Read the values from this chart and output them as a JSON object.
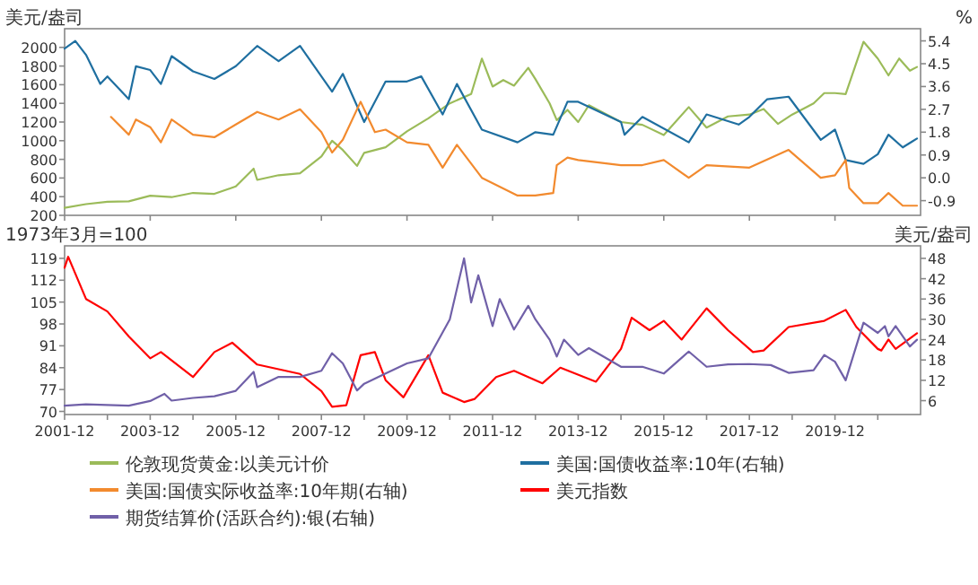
{
  "chart_data": [
    {
      "type": "line",
      "ylabel": "美元/盎司",
      "y2label": "%",
      "xlim": [
        "2001-12",
        "2021-12"
      ],
      "xticks": [
        {
          "value": "2001-12",
          "label": null
        },
        {
          "value": "2003-12",
          "label": null
        },
        {
          "value": "2005-12",
          "label": null
        },
        {
          "value": "2007-12",
          "label": null
        },
        {
          "value": "2009-12",
          "label": null
        },
        {
          "value": "2011-12",
          "label": null
        },
        {
          "value": "2013-12",
          "label": null
        },
        {
          "value": "2015-12",
          "label": null
        },
        {
          "value": "2017-12",
          "label": null
        },
        {
          "value": "2019-12",
          "label": null
        }
      ],
      "ylim": [
        200,
        2200
      ],
      "yticks": [
        200,
        400,
        600,
        800,
        1000,
        1200,
        1400,
        1600,
        1800,
        2000
      ],
      "y2lim": [
        -1.48,
        5.88
      ],
      "y2ticks": [
        -0.9,
        {
          "value": 0,
          "label": "0.0"
        },
        0.9,
        1.8,
        2.7,
        3.6,
        4.5,
        5.4
      ],
      "tick_labels": "y",
      "legend": "bottom",
      "series": [
        {
          "name": "伦敦现货黄金:以美元计价",
          "color": "#9bbb59",
          "x": [
            "2001-12",
            "2002-06",
            "2002-12",
            "2003-06",
            "2003-12",
            "2004-06",
            "2004-12",
            "2005-06",
            "2005-12",
            "2006-05",
            "2006-06",
            "2006-12",
            "2007-06",
            "2007-12",
            "2008-03",
            "2008-06",
            "2008-10",
            "2008-12",
            "2009-06",
            "2009-12",
            "2010-06",
            "2010-12",
            "2011-06",
            "2011-09",
            "2011-12",
            "2012-03",
            "2012-06",
            "2012-10",
            "2012-12",
            "2013-04",
            "2013-06",
            "2013-09",
            "2013-12",
            "2014-03",
            "2014-06",
            "2014-12",
            "2015-06",
            "2015-12",
            "2016-07",
            "2016-12",
            "2017-06",
            "2017-12",
            "2018-04",
            "2018-08",
            "2018-12",
            "2019-06",
            "2019-09",
            "2019-12",
            "2020-03",
            "2020-08",
            "2020-12",
            "2021-03",
            "2021-06",
            "2021-09",
            "2021-11"
          ],
          "values": [
            280,
            320,
            345,
            350,
            410,
            395,
            440,
            430,
            510,
            700,
            580,
            630,
            650,
            830,
            1000,
            900,
            730,
            870,
            930,
            1100,
            1240,
            1400,
            1500,
            1880,
            1580,
            1650,
            1590,
            1780,
            1660,
            1400,
            1220,
            1330,
            1200,
            1380,
            1320,
            1200,
            1170,
            1060,
            1360,
            1140,
            1260,
            1280,
            1340,
            1180,
            1280,
            1400,
            1510,
            1510,
            1500,
            2060,
            1880,
            1700,
            1880,
            1750,
            1790
          ]
        },
        {
          "name": "美国:国债收益率:10年(右轴)",
          "color": "#1f6fa0",
          "axis": "y2",
          "x": [
            "2001-12",
            "2002-03",
            "2002-06",
            "2002-10",
            "2002-12",
            "2003-06",
            "2003-08",
            "2003-12",
            "2004-03",
            "2004-06",
            "2004-12",
            "2005-06",
            "2005-12",
            "2006-06",
            "2006-12",
            "2007-06",
            "2007-12",
            "2008-03",
            "2008-06",
            "2008-12",
            "2009-06",
            "2009-12",
            "2010-04",
            "2010-10",
            "2011-02",
            "2011-09",
            "2012-07",
            "2012-12",
            "2013-05",
            "2013-09",
            "2013-12",
            "2014-12",
            "2015-01",
            "2015-06",
            "2016-07",
            "2016-12",
            "2017-09",
            "2017-12",
            "2018-05",
            "2018-11",
            "2019-08",
            "2019-12",
            "2020-03",
            "2020-08",
            "2020-12",
            "2021-03",
            "2021-07",
            "2021-11"
          ],
          "values": [
            5.1,
            5.4,
            4.85,
            3.7,
            4.0,
            3.1,
            4.4,
            4.25,
            3.7,
            4.8,
            4.2,
            3.9,
            4.4,
            5.2,
            4.6,
            5.2,
            4.0,
            3.4,
            4.1,
            2.2,
            3.8,
            3.8,
            4.0,
            2.5,
            3.7,
            1.9,
            1.4,
            1.8,
            1.7,
            3.0,
            3.0,
            2.2,
            1.7,
            2.4,
            1.4,
            2.5,
            2.1,
            2.4,
            3.1,
            3.2,
            1.5,
            1.9,
            0.7,
            0.55,
            0.93,
            1.7,
            1.2,
            1.55
          ]
        },
        {
          "name": "美国:国债实际收益率:10年期(右轴)",
          "color": "#f28a2e",
          "axis": "y2",
          "x": [
            "2003-01",
            "2003-06",
            "2003-08",
            "2003-12",
            "2004-03",
            "2004-06",
            "2004-12",
            "2005-06",
            "2005-12",
            "2006-06",
            "2006-12",
            "2007-06",
            "2007-12",
            "2008-03",
            "2008-06",
            "2008-11",
            "2009-03",
            "2009-06",
            "2009-12",
            "2010-06",
            "2010-10",
            "2011-02",
            "2011-09",
            "2012-07",
            "2012-12",
            "2013-05",
            "2013-06",
            "2013-09",
            "2013-12",
            "2014-12",
            "2015-06",
            "2015-12",
            "2016-07",
            "2016-12",
            "2017-12",
            "2018-11",
            "2019-08",
            "2019-12",
            "2020-03",
            "2020-04",
            "2020-08",
            "2020-12",
            "2021-03",
            "2021-07",
            "2021-11"
          ],
          "values": [
            2.4,
            1.7,
            2.3,
            2.0,
            1.4,
            2.3,
            1.7,
            1.6,
            2.1,
            2.6,
            2.3,
            2.7,
            1.8,
            1.0,
            1.5,
            3.0,
            1.8,
            1.9,
            1.4,
            1.3,
            0.4,
            1.3,
            0.0,
            -0.7,
            -0.7,
            -0.6,
            0.5,
            0.8,
            0.7,
            0.5,
            0.5,
            0.7,
            0.0,
            0.5,
            0.4,
            1.1,
            0.0,
            0.1,
            0.7,
            -0.4,
            -1.0,
            -1.0,
            -0.6,
            -1.1,
            -1.1
          ]
        }
      ]
    },
    {
      "type": "line",
      "ylabel": "1973年3月=100",
      "y2label": "美元/盎司",
      "xlim": [
        "2001-12",
        "2021-12"
      ],
      "xticks": [
        "2001-12",
        {
          "value": "2002-12",
          "label": null
        },
        "2003-12",
        {
          "value": "2004-12",
          "label": null
        },
        "2005-12",
        {
          "value": "2006-12",
          "label": null
        },
        "2007-12",
        {
          "value": "2008-12",
          "label": null
        },
        "2009-12",
        {
          "value": "2010-12",
          "label": null
        },
        "2011-12",
        {
          "value": "2012-12",
          "label": null
        },
        "2013-12",
        {
          "value": "2014-12",
          "label": null
        },
        "2015-12",
        {
          "value": "2016-12",
          "label": null
        },
        "2017-12",
        {
          "value": "2018-12",
          "label": null
        },
        "2019-12",
        {
          "value": "2020-12",
          "label": null
        }
      ],
      "ylim": [
        69,
        123
      ],
      "yticks": [
        70,
        77,
        84,
        91,
        98,
        105,
        112,
        119
      ],
      "y2lim": [
        1.9,
        51.7
      ],
      "y2ticks": [
        6,
        12,
        18,
        24,
        30,
        36,
        42,
        48
      ],
      "legend": "bottom",
      "series": [
        {
          "name": "美元指数",
          "color": "#ff0000",
          "x": [
            "2001-12",
            "2002-01",
            "2002-06",
            "2002-12",
            "2003-06",
            "2003-12",
            "2004-03",
            "2004-12",
            "2005-06",
            "2005-11",
            "2006-06",
            "2006-12",
            "2007-06",
            "2007-12",
            "2008-03",
            "2008-07",
            "2008-11",
            "2009-03",
            "2009-06",
            "2009-11",
            "2010-06",
            "2010-10",
            "2011-04",
            "2011-07",
            "2012-01",
            "2012-06",
            "2013-02",
            "2013-07",
            "2014-05",
            "2014-12",
            "2015-03",
            "2015-08",
            "2015-12",
            "2016-05",
            "2016-12",
            "2017-06",
            "2018-01",
            "2018-04",
            "2018-11",
            "2019-09",
            "2020-03",
            "2020-06",
            "2020-12",
            "2021-01",
            "2021-03",
            "2021-05",
            "2021-11"
          ],
          "values": [
            116,
            119.5,
            106,
            102,
            94,
            87,
            89,
            81,
            89,
            92,
            85,
            83.5,
            82,
            76.5,
            71.5,
            72,
            88,
            89,
            80,
            74.5,
            88,
            76,
            73,
            74,
            81,
            83,
            79,
            84,
            79.5,
            90,
            100,
            96,
            99,
            93,
            103,
            96,
            89,
            89.5,
            97,
            99,
            102.5,
            97,
            90,
            89.5,
            93,
            90,
            95
          ]
        },
        {
          "name": "期货结算价(活跃合约):银(右轴)",
          "color": "#7060a8",
          "axis": "y2",
          "x": [
            "2001-12",
            "2002-06",
            "2003-06",
            "2003-12",
            "2004-04",
            "2004-06",
            "2004-12",
            "2005-06",
            "2005-12",
            "2006-05",
            "2006-06",
            "2006-12",
            "2007-06",
            "2007-12",
            "2008-03",
            "2008-06",
            "2008-10",
            "2008-12",
            "2009-06",
            "2009-12",
            "2010-06",
            "2010-12",
            "2011-04",
            "2011-06",
            "2011-08",
            "2011-12",
            "2012-02",
            "2012-06",
            "2012-10",
            "2012-12",
            "2013-04",
            "2013-06",
            "2013-08",
            "2013-12",
            "2014-03",
            "2014-12",
            "2015-06",
            "2015-12",
            "2016-07",
            "2016-12",
            "2017-06",
            "2017-12",
            "2018-06",
            "2018-11",
            "2019-06",
            "2019-09",
            "2019-12",
            "2020-03",
            "2020-08",
            "2020-12",
            "2021-02",
            "2021-03",
            "2021-05",
            "2021-09",
            "2021-11"
          ],
          "values": [
            4.5,
            4.9,
            4.5,
            5.9,
            8,
            6,
            6.8,
            7.3,
            8.9,
            14.5,
            10,
            13,
            13,
            14.8,
            20,
            17,
            9,
            11,
            14,
            17,
            18.5,
            30,
            48,
            35,
            43,
            28,
            36,
            27,
            34,
            30,
            24,
            19,
            24,
            19.5,
            21.5,
            16,
            16,
            14,
            20.5,
            16,
            16.7,
            16.8,
            16.5,
            14.2,
            15,
            19.5,
            17.5,
            12,
            29,
            26,
            28,
            25,
            28,
            22,
            24
          ]
        }
      ]
    }
  ]
}
